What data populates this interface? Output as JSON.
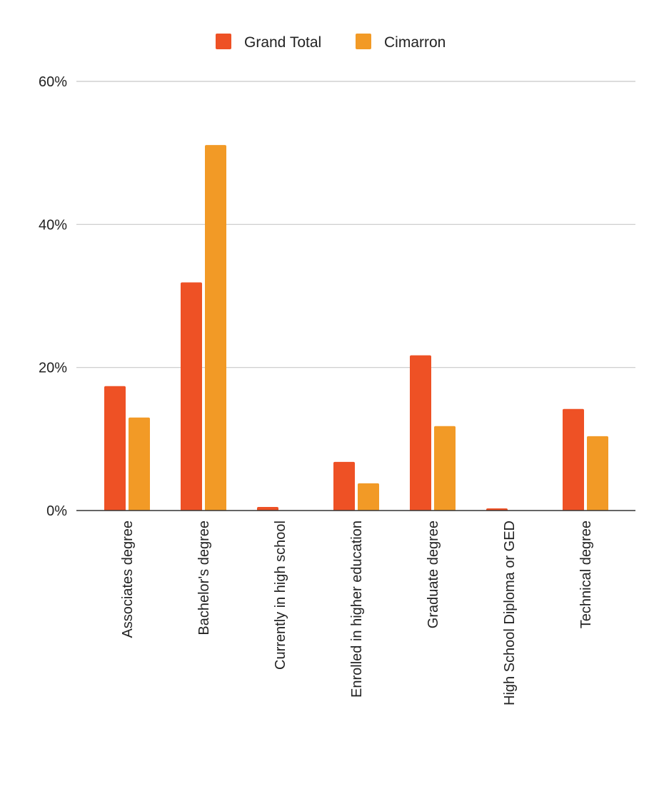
{
  "chart_data": {
    "type": "bar",
    "title": "",
    "xlabel": "",
    "ylabel": "",
    "ylim": [
      0,
      60
    ],
    "y_ticks": [
      "0%",
      "20%",
      "40%",
      "60%"
    ],
    "y_tick_values": [
      0,
      20,
      40,
      60
    ],
    "grid": true,
    "legend_placement": "top",
    "categories": [
      "Associates degree",
      "Bachelor's degree",
      "Currently in high school",
      "Enrolled in higher education",
      "Graduate degree",
      "High School Diploma or GED",
      "Technical degree"
    ],
    "series": [
      {
        "name": "Grand Total",
        "color": "#EE5125",
        "values": [
          17.4,
          31.9,
          0.5,
          6.8,
          21.7,
          0.3,
          14.2
        ]
      },
      {
        "name": "Cimarron",
        "color": "#F29A26",
        "values": [
          13.0,
          51.1,
          0,
          3.8,
          11.8,
          0,
          10.4
        ]
      }
    ]
  }
}
